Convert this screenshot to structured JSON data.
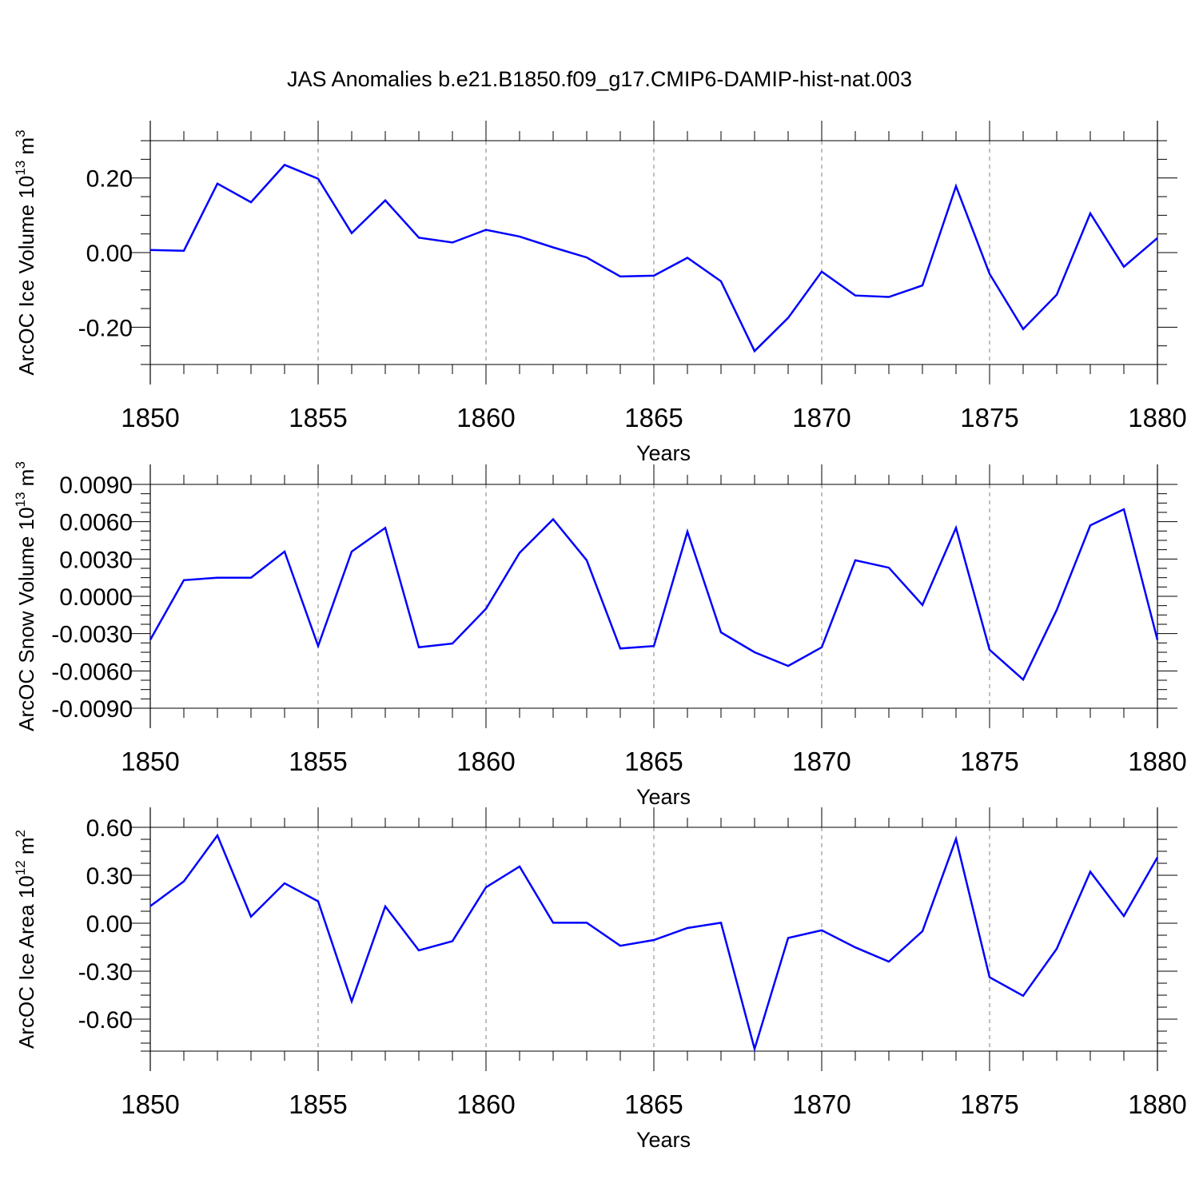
{
  "title": "JAS Anomalies b.e21.B1850.f09_g17.CMIP6-DAMIP-hist-nat.003",
  "colors": {
    "line": "#0000ff",
    "axis": "#000000",
    "grid": "#808080"
  },
  "chart_data": [
    {
      "type": "line",
      "ylabel": "ArcOC Ice Volume 10",
      "ylabel_sup": "13",
      "ylabel_unit": " m",
      "ylabel_unit_sup": "3",
      "xlabel": "Years",
      "xlim": [
        1850,
        1880
      ],
      "ylim": [
        -0.3,
        0.3
      ],
      "xticks": [
        "1850",
        "1855",
        "1860",
        "1865",
        "1870",
        "1875",
        "1880"
      ],
      "yticks": [
        {
          "v": 0.2,
          "label": "0.20"
        },
        {
          "v": 0.0,
          "label": "0.00"
        },
        {
          "v": -0.2,
          "label": "-0.20"
        }
      ],
      "grid": "vertical dashed at major x ticks",
      "series": [
        {
          "x": [
            1850,
            1851,
            1852,
            1853,
            1854,
            1855,
            1856,
            1857,
            1858,
            1859,
            1860,
            1861,
            1862,
            1863,
            1864,
            1865,
            1866,
            1867,
            1868,
            1869,
            1870,
            1871,
            1872,
            1873,
            1874,
            1875,
            1876,
            1877,
            1878,
            1879,
            1880
          ],
          "y": [
            0.007,
            0.005,
            0.185,
            0.135,
            0.235,
            0.198,
            0.052,
            0.14,
            0.04,
            0.027,
            0.061,
            0.043,
            0.014,
            -0.013,
            -0.064,
            -0.062,
            -0.014,
            -0.077,
            -0.264,
            -0.175,
            -0.051,
            -0.115,
            -0.119,
            -0.088,
            0.178,
            -0.057,
            -0.205,
            -0.113,
            0.105,
            -0.038,
            0.039
          ]
        }
      ]
    },
    {
      "type": "line",
      "ylabel": "ArcOC Snow Volume 10",
      "ylabel_sup": "13",
      "ylabel_unit": " m",
      "ylabel_unit_sup": "3",
      "xlabel": "Years",
      "xlim": [
        1850,
        1880
      ],
      "ylim": [
        -0.009,
        0.009
      ],
      "xticks": [
        "1850",
        "1855",
        "1860",
        "1865",
        "1870",
        "1875",
        "1880"
      ],
      "yticks": [
        {
          "v": 0.009,
          "label": "0.0090"
        },
        {
          "v": 0.006,
          "label": "0.0060"
        },
        {
          "v": 0.003,
          "label": "0.0030"
        },
        {
          "v": 0.0,
          "label": "0.0000"
        },
        {
          "v": -0.003,
          "label": "-0.0030"
        },
        {
          "v": -0.006,
          "label": "-0.0060"
        },
        {
          "v": -0.009,
          "label": "-0.0090"
        }
      ],
      "grid": "vertical dashed at major x ticks",
      "series": [
        {
          "x": [
            1850,
            1851,
            1852,
            1853,
            1854,
            1855,
            1856,
            1857,
            1858,
            1859,
            1860,
            1861,
            1862,
            1863,
            1864,
            1865,
            1866,
            1867,
            1868,
            1869,
            1870,
            1871,
            1872,
            1873,
            1874,
            1875,
            1876,
            1877,
            1878,
            1879,
            1880
          ],
          "y": [
            -0.0035,
            0.0013,
            0.0015,
            0.0015,
            0.0036,
            -0.004,
            0.0036,
            0.0055,
            -0.0041,
            -0.0038,
            -0.001,
            0.0035,
            0.0062,
            0.0029,
            -0.0042,
            -0.004,
            0.0052,
            -0.0029,
            -0.0045,
            -0.0056,
            -0.0041,
            0.0029,
            0.0023,
            -0.0007,
            0.0055,
            -0.0043,
            -0.0067,
            -0.0011,
            0.0057,
            0.007,
            -0.0035
          ]
        }
      ]
    },
    {
      "type": "line",
      "ylabel": "ArcOC Ice Area 10",
      "ylabel_sup": "12",
      "ylabel_unit": " m",
      "ylabel_unit_sup": "2",
      "xlabel": "Years",
      "xlim": [
        1850,
        1880
      ],
      "ylim": [
        -0.8,
        0.6
      ],
      "xticks": [
        "1850",
        "1855",
        "1860",
        "1865",
        "1870",
        "1875",
        "1880"
      ],
      "yticks": [
        {
          "v": 0.6,
          "label": "0.60"
        },
        {
          "v": 0.3,
          "label": "0.30"
        },
        {
          "v": 0.0,
          "label": "0.00"
        },
        {
          "v": -0.3,
          "label": "-0.30"
        },
        {
          "v": -0.6,
          "label": "-0.60"
        }
      ],
      "grid": "vertical dashed at major x ticks",
      "series": [
        {
          "x": [
            1850,
            1851,
            1852,
            1853,
            1854,
            1855,
            1856,
            1857,
            1858,
            1859,
            1860,
            1861,
            1862,
            1863,
            1864,
            1865,
            1866,
            1867,
            1868,
            1869,
            1870,
            1871,
            1872,
            1873,
            1874,
            1875,
            1876,
            1877,
            1878,
            1879,
            1880
          ],
          "y": [
            0.107,
            0.262,
            0.549,
            0.041,
            0.25,
            0.137,
            -0.489,
            0.105,
            -0.17,
            -0.112,
            0.225,
            0.355,
            0.003,
            0.003,
            -0.141,
            -0.105,
            -0.03,
            0.003,
            -0.786,
            -0.092,
            -0.044,
            -0.151,
            -0.24,
            -0.05,
            0.528,
            -0.338,
            -0.454,
            -0.16,
            0.322,
            0.045,
            0.412
          ]
        }
      ]
    }
  ]
}
